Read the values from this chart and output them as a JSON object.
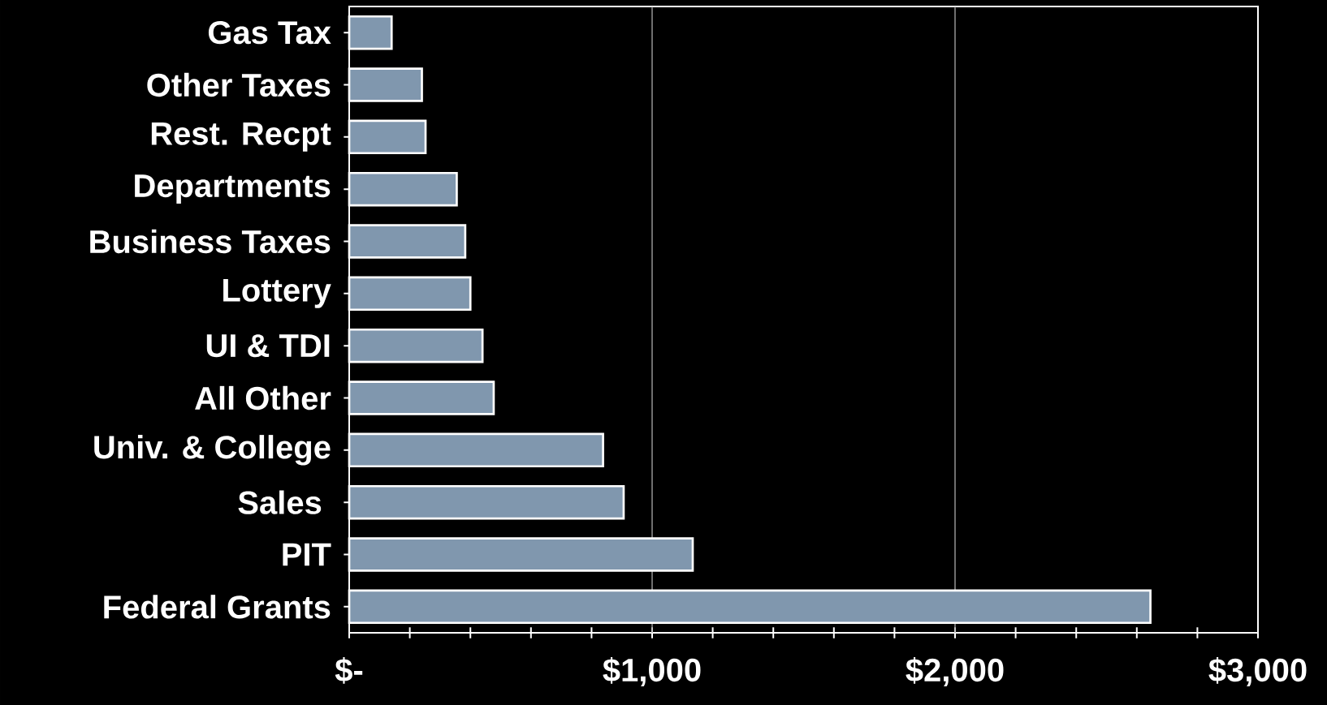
{
  "chart_data": {
    "type": "bar",
    "orientation": "horizontal",
    "categories": [
      "Gas Tax",
      "Other Taxes",
      "Rest. Recpt",
      "Departments",
      "Business Taxes",
      "Lottery",
      "UI & TDI",
      "All Other",
      "Univ. & College",
      "Sales ",
      "PIT",
      "Federal Grants"
    ],
    "values": [
      140,
      240,
      252,
      355,
      383,
      400,
      440,
      477,
      838,
      906,
      1134,
      2645
    ],
    "color": "#8097ae",
    "xlim": [
      0,
      3000
    ],
    "xticks": [
      {
        "value": 0,
        "label": "$-"
      },
      {
        "value": 200,
        "label": null
      },
      {
        "value": 400,
        "label": null
      },
      {
        "value": 600,
        "label": null
      },
      {
        "value": 800,
        "label": null
      },
      {
        "value": 1000,
        "label": "$1,000"
      },
      {
        "value": 1200,
        "label": null
      },
      {
        "value": 1400,
        "label": null
      },
      {
        "value": 1600,
        "label": null
      },
      {
        "value": 1800,
        "label": null
      },
      {
        "value": 2000,
        "label": "$2,000"
      },
      {
        "value": 2200,
        "label": null
      },
      {
        "value": 2400,
        "label": null
      },
      {
        "value": 2600,
        "label": null
      },
      {
        "value": 2800,
        "label": null
      },
      {
        "value": 3000,
        "label": "$3,000"
      }
    ],
    "grid": "x"
  }
}
